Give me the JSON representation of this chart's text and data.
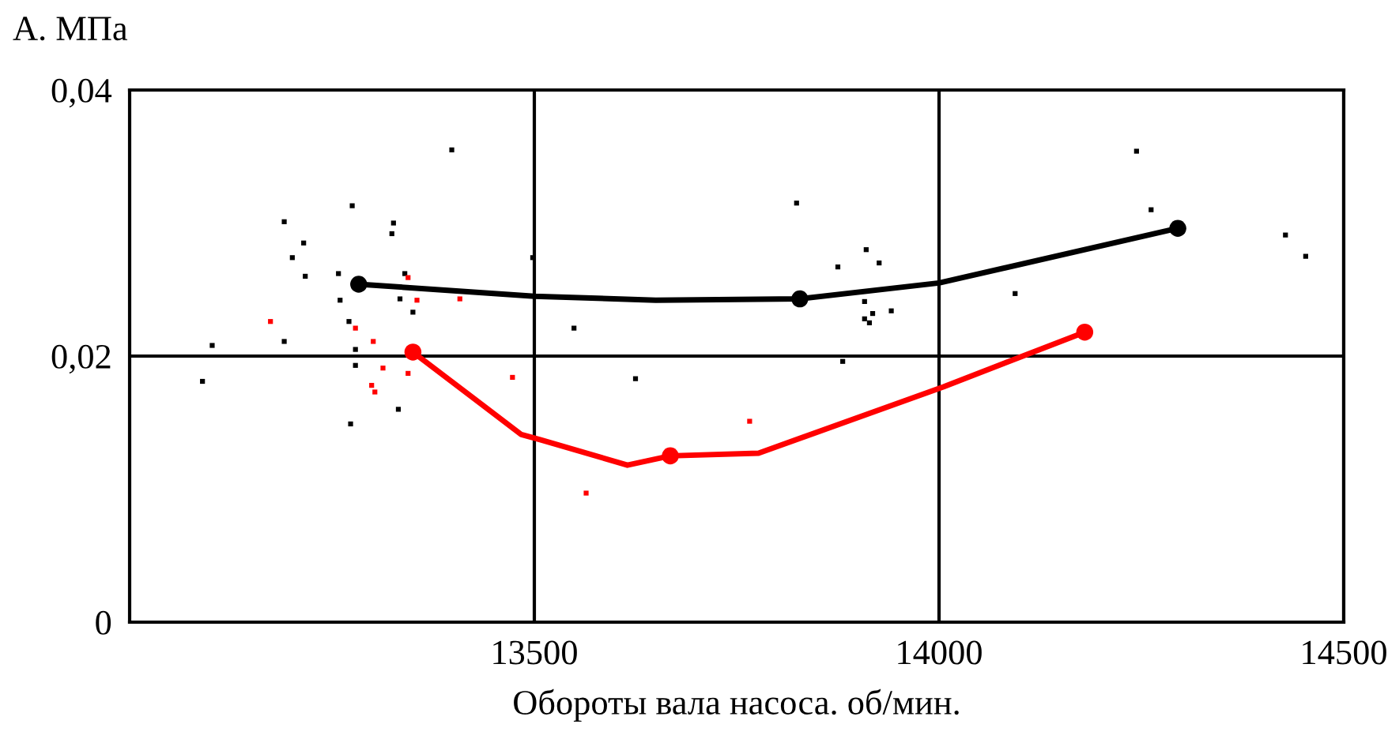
{
  "chart_data": {
    "type": "scatter",
    "ylabel": "А. МПа",
    "xlabel": "Обороты вала насоса. об/мин.",
    "xlim": [
      13000,
      14500
    ],
    "xticks": [
      13500,
      14000,
      14500
    ],
    "ylim": [
      0,
      0.04
    ],
    "yticks": [
      {
        "value": 0,
        "label": "0"
      },
      {
        "value": 0.02,
        "label": "0,02"
      },
      {
        "value": 0.04,
        "label": "0,04"
      }
    ],
    "grid": true,
    "series": [
      {
        "marker": "square",
        "color": "#000000",
        "x": [
          13398,
          13275,
          13191,
          13326,
          13324,
          13215,
          13201,
          13217,
          13258,
          13260,
          13340,
          13334,
          13350,
          13271,
          13191,
          13102,
          13279,
          13279,
          13090,
          13332,
          13273,
          13498,
          13824,
          13549,
          13625,
          13875,
          13910,
          13926,
          13908,
          13908,
          13918,
          13914,
          13941,
          13881,
          14244,
          14262,
          14094,
          14428,
          14453
        ],
        "values": [
          0.0355,
          0.0313,
          0.0301,
          0.03,
          0.0292,
          0.0285,
          0.0274,
          0.026,
          0.0262,
          0.0242,
          0.0262,
          0.0243,
          0.0233,
          0.0226,
          0.0211,
          0.0208,
          0.0205,
          0.0193,
          0.0181,
          0.016,
          0.0149,
          0.0274,
          0.0315,
          0.0221,
          0.0183,
          0.0267,
          0.028,
          0.027,
          0.0241,
          0.0228,
          0.0232,
          0.0225,
          0.0234,
          0.0196,
          0.0354,
          0.031,
          0.0247,
          0.0291,
          0.0275
        ]
      },
      {
        "marker": "square",
        "color": "#ff0000",
        "x": [
          13174,
          13344,
          13355,
          13408,
          13279,
          13301,
          13313,
          13344,
          13299,
          13303,
          13473,
          13766,
          13564
        ],
        "values": [
          0.0226,
          0.0259,
          0.0242,
          0.0243,
          0.0221,
          0.0211,
          0.0191,
          0.0187,
          0.0178,
          0.0173,
          0.0184,
          0.0151,
          0.0097
        ]
      },
      {
        "type": "line",
        "marker": "none",
        "color": "#000000",
        "x": [
          13283,
          13500,
          13650,
          13828,
          14000,
          14295
        ],
        "values": [
          0.0254,
          0.0245,
          0.0242,
          0.0243,
          0.0255,
          0.0296
        ]
      },
      {
        "type": "line",
        "marker": "none",
        "color": "#ff0000",
        "x": [
          13350,
          13484,
          13508,
          13615,
          13668,
          13777,
          14006,
          14180
        ],
        "values": [
          0.0203,
          0.0141,
          0.0137,
          0.0118,
          0.0125,
          0.0127,
          0.0177,
          0.0218
        ]
      },
      {
        "marker": "circle",
        "color": "#000000",
        "x": [
          13283,
          13828,
          14295
        ],
        "values": [
          0.0254,
          0.0243,
          0.0296
        ]
      },
      {
        "marker": "circle",
        "color": "#ff0000",
        "x": [
          13350,
          13668,
          14180
        ],
        "values": [
          0.0203,
          0.0125,
          0.0218
        ]
      }
    ]
  }
}
